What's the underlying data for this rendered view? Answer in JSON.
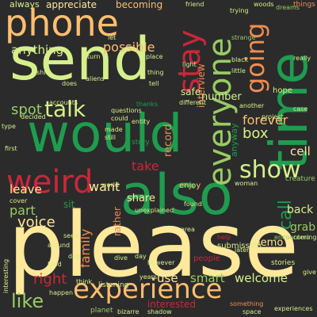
{
  "background": "#2b2b2b",
  "palette": {
    "red": "#c8283a",
    "orange": "#f08c52",
    "light_orange": "#fdbe70",
    "yellow": "#fee89a",
    "light_green": "#d6ef8c",
    "green": "#98cc64",
    "dark_green": "#1f9c4f"
  },
  "words": [
    {
      "text": "please",
      "color": "yellow"
    },
    {
      "text": "would",
      "color": "dark_green"
    },
    {
      "text": "also",
      "color": "dark_green"
    },
    {
      "text": "send",
      "color": "light_green"
    },
    {
      "text": "time",
      "color": "dark_green"
    },
    {
      "text": "phone",
      "color": "light_orange"
    },
    {
      "text": "experience",
      "color": "light_orange"
    },
    {
      "text": "everyone",
      "color": "green"
    },
    {
      "text": "weird",
      "color": "red"
    },
    {
      "text": "stay",
      "color": "red"
    },
    {
      "text": "going",
      "color": "orange"
    },
    {
      "text": "show",
      "color": "light_green"
    },
    {
      "text": "talk",
      "color": "light_green"
    },
    {
      "text": "like",
      "color": "green"
    },
    {
      "text": "call",
      "color": "dark_green"
    },
    {
      "text": "right",
      "color": "red"
    },
    {
      "text": "voice",
      "color": "yellow"
    },
    {
      "text": "possible",
      "color": "light_orange"
    },
    {
      "text": "anything",
      "color": "light_green"
    },
    {
      "text": "interview",
      "color": "orange"
    },
    {
      "text": "forever",
      "color": "light_orange"
    },
    {
      "text": "box",
      "color": "light_green"
    },
    {
      "text": "spot",
      "color": "green"
    },
    {
      "text": "take",
      "color": "red"
    },
    {
      "text": "want",
      "color": "yellow"
    },
    {
      "text": "part",
      "color": "green"
    },
    {
      "text": "leave",
      "color": "yellow"
    },
    {
      "text": "family",
      "color": "orange"
    },
    {
      "text": "back",
      "color": "light_green"
    },
    {
      "text": "cell",
      "color": "yellow"
    },
    {
      "text": "grab",
      "color": "green"
    },
    {
      "text": "memo",
      "color": "yellow"
    },
    {
      "text": "welcome",
      "color": "light_green"
    },
    {
      "text": "smart",
      "color": "green"
    },
    {
      "text": "use",
      "color": "yellow"
    },
    {
      "text": "record",
      "color": "orange"
    },
    {
      "text": "share",
      "color": "yellow"
    },
    {
      "text": "number",
      "color": "light_green"
    },
    {
      "text": "always",
      "color": "light_green"
    },
    {
      "text": "appreciate",
      "color": "yellow"
    },
    {
      "text": "becoming",
      "color": "light_orange"
    },
    {
      "text": "safe",
      "color": "light_green"
    },
    {
      "text": "interested",
      "color": "red"
    },
    {
      "text": "rather",
      "color": "orange"
    },
    {
      "text": "submission",
      "color": "light_green"
    },
    {
      "text": "enjoy",
      "color": "light_orange"
    },
    {
      "text": "sit",
      "color": "dark_green"
    },
    {
      "text": "anyway",
      "color": "dark_green"
    },
    {
      "text": "listening",
      "color": "light_green"
    },
    {
      "text": "planet",
      "color": "green"
    },
    {
      "text": "stories",
      "color": "light_green"
    },
    {
      "text": "hope",
      "color": "light_green"
    },
    {
      "text": "creature",
      "color": "green"
    },
    {
      "text": "encounters",
      "color": "green"
    },
    {
      "text": "friend",
      "color": "light_green"
    },
    {
      "text": "woods",
      "color": "light_green"
    },
    {
      "text": "things",
      "color": "orange"
    },
    {
      "text": "dreams",
      "color": "green"
    },
    {
      "text": "trying",
      "color": "light_green"
    },
    {
      "text": "really",
      "color": "light_green"
    },
    {
      "text": "strange",
      "color": "green"
    },
    {
      "text": "black",
      "color": "light_green"
    },
    {
      "text": "little",
      "color": "light_green"
    },
    {
      "text": "light",
      "color": "light_green"
    },
    {
      "text": "turn",
      "color": "light_green"
    },
    {
      "text": "let",
      "color": "light_green"
    },
    {
      "text": "place",
      "color": "light_green"
    },
    {
      "text": "tell",
      "color": "light_green"
    },
    {
      "text": "thing",
      "color": "light_green"
    },
    {
      "text": "shift",
      "color": "light_green"
    },
    {
      "text": "accounts",
      "color": "light_green"
    },
    {
      "text": "decided",
      "color": "light_green"
    },
    {
      "text": "does",
      "color": "light_green"
    },
    {
      "text": "questions",
      "color": "light_green"
    },
    {
      "text": "thanks",
      "color": "dark_green"
    },
    {
      "text": "different",
      "color": "light_green"
    },
    {
      "text": "another",
      "color": "light_green"
    },
    {
      "text": "project",
      "color": "light_green"
    },
    {
      "text": "case",
      "color": "light_green"
    },
    {
      "text": "type",
      "color": "light_green"
    },
    {
      "text": "first",
      "color": "light_green"
    },
    {
      "text": "story",
      "color": "dark_green"
    },
    {
      "text": "could",
      "color": "light_green"
    },
    {
      "text": "made",
      "color": "light_green"
    },
    {
      "text": "still",
      "color": "light_green"
    },
    {
      "text": "entity",
      "color": "light_green"
    },
    {
      "text": "world",
      "color": "light_green"
    },
    {
      "text": "found",
      "color": "light_green"
    },
    {
      "text": "seen",
      "color": "light_green"
    },
    {
      "text": "woman",
      "color": "light_green"
    },
    {
      "text": "aliens",
      "color": "light_green"
    },
    {
      "text": "day",
      "color": "light_green"
    },
    {
      "text": "dive",
      "color": "light_green"
    },
    {
      "text": "however",
      "color": "light_green"
    },
    {
      "text": "people",
      "color": "red"
    },
    {
      "text": "later",
      "color": "light_green"
    },
    {
      "text": "help",
      "color": "red"
    },
    {
      "text": "coming",
      "color": "light_green"
    },
    {
      "text": "space",
      "color": "light_green"
    },
    {
      "text": "something",
      "color": "orange"
    },
    {
      "text": "happen",
      "color": "light_green"
    },
    {
      "text": "bizarre",
      "color": "light_green"
    },
    {
      "text": "shadow",
      "color": "light_green"
    },
    {
      "text": "years",
      "color": "light_green"
    },
    {
      "text": "food",
      "color": "light_green"
    },
    {
      "text": "around",
      "color": "light_green"
    },
    {
      "text": "think",
      "color": "light_green"
    },
    {
      "text": "interesting",
      "color": "light_green"
    },
    {
      "text": "dog",
      "color": "light_green"
    },
    {
      "text": "experiences",
      "color": "light_green"
    },
    {
      "text": "cover",
      "color": "light_green"
    },
    {
      "text": "unexplained",
      "color": "light_green"
    },
    {
      "text": "area",
      "color": "light_green"
    },
    {
      "text": "give",
      "color": "light_green"
    }
  ]
}
